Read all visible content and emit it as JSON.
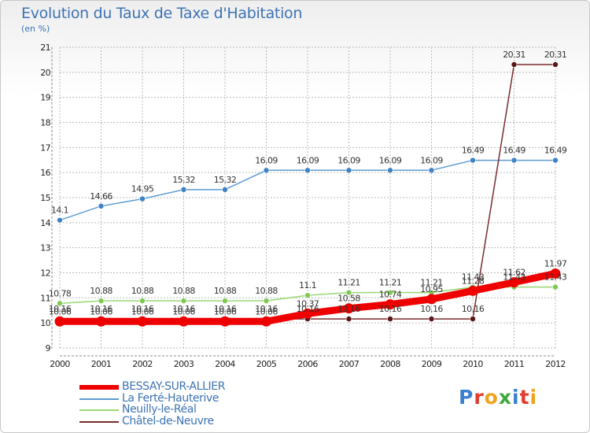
{
  "title": "Evolution du Taux de Taxe d'Habitation",
  "unit": "(en %)",
  "logo": "Proxiti",
  "colors": {
    "title": "#3c73b5",
    "grid": "#bbbbbb",
    "logo": [
      "#3b7fd0",
      "#e23b2e",
      "#f0a21e",
      "#3fa73f",
      "#3b7fd0",
      "#e23b2e",
      "#f0a21e"
    ]
  },
  "chart_data": {
    "type": "line",
    "x": [
      2000,
      2001,
      2002,
      2003,
      2004,
      2005,
      2006,
      2007,
      2008,
      2009,
      2010,
      2011,
      2012
    ],
    "ylim": [
      9,
      21
    ],
    "yticks": [
      9,
      10,
      11,
      12,
      13,
      14,
      15,
      16,
      17,
      18,
      19,
      20,
      21
    ],
    "grid": true,
    "legend": "bottom-left",
    "series": [
      {
        "name": "La Ferté-Hauterive",
        "color": "#5c9bd3",
        "marker": "#3f82c4",
        "values": [
          14.1,
          14.66,
          14.95,
          15.32,
          15.32,
          16.09,
          16.09,
          16.09,
          16.09,
          16.09,
          16.49,
          16.49,
          16.49
        ],
        "labels": [
          "14.1",
          "14.66",
          "14.95",
          "15.32",
          "15.32",
          "16.09",
          "16.09",
          "16.09",
          "16.09",
          "16.09",
          "16.49",
          "16.49",
          "16.49"
        ]
      },
      {
        "name": "Neuilly-le-Réal",
        "color": "#98d873",
        "marker": "#7ec956",
        "values": [
          10.78,
          10.88,
          10.88,
          10.88,
          10.88,
          10.88,
          11.1,
          11.21,
          11.21,
          11.21,
          11.43,
          11.43,
          11.43
        ],
        "labels": [
          "10.78",
          "10.88",
          "10.88",
          "10.88",
          "10.88",
          "10.88",
          "11.1",
          "11.21",
          "11.21",
          "11.21",
          "11.43",
          "11.43",
          "11.43"
        ]
      },
      {
        "name": "Châtel-de-Neuvre",
        "color": "#7a2c2c",
        "marker": "#5a1515",
        "values": [
          10.16,
          10.16,
          10.16,
          10.16,
          10.16,
          10.16,
          10.16,
          10.16,
          10.16,
          10.16,
          10.16,
          20.31,
          20.31
        ],
        "labels": [
          "10.16",
          "10.16",
          "10.16",
          "10.16",
          "10.16",
          "10.16",
          "10.16",
          "10.16",
          "10.16",
          "10.16",
          "10.16",
          "20.31",
          "20.31"
        ]
      },
      {
        "name": "BESSAY-SUR-ALLIER",
        "color": "#ee0000",
        "marker": "#ee0000",
        "values": [
          10.06,
          10.06,
          10.06,
          10.06,
          10.06,
          10.06,
          10.37,
          10.58,
          10.74,
          10.95,
          11.28,
          11.62,
          11.97
        ],
        "labels": [
          "10.06",
          "10.06",
          "10.06",
          "10.06",
          "10.06",
          "10.06",
          "10.37",
          "10.58",
          "10.74",
          "10.95",
          "11.28",
          "11.62",
          "11.97"
        ]
      }
    ],
    "legend_entries": [
      "BESSAY-SUR-ALLIER",
      "La Ferté-Hauterive",
      "Neuilly-le-Réal",
      "Châtel-de-Neuvre"
    ]
  }
}
